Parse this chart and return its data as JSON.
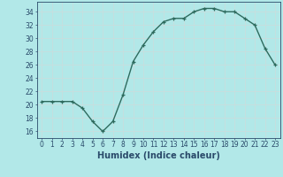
{
  "x": [
    0,
    1,
    2,
    3,
    4,
    5,
    6,
    7,
    8,
    9,
    10,
    11,
    12,
    13,
    14,
    15,
    16,
    17,
    18,
    19,
    20,
    21,
    22,
    23
  ],
  "y": [
    20.5,
    20.5,
    20.5,
    20.5,
    19.5,
    17.5,
    16.0,
    17.5,
    21.5,
    26.5,
    29.0,
    31.0,
    32.5,
    33.0,
    33.0,
    34.0,
    34.5,
    34.5,
    34.0,
    34.0,
    33.0,
    32.0,
    28.5,
    26.0
  ],
  "line_color": "#2e6b5e",
  "marker": "+",
  "bg_color": "#b2e8e8",
  "grid_color": "#c8dede",
  "xlabel": "Humidex (Indice chaleur)",
  "xlim": [
    -0.5,
    23.5
  ],
  "ylim": [
    15.0,
    35.5
  ],
  "yticks": [
    16,
    18,
    20,
    22,
    24,
    26,
    28,
    30,
    32,
    34
  ],
  "xticks": [
    0,
    1,
    2,
    3,
    4,
    5,
    6,
    7,
    8,
    9,
    10,
    11,
    12,
    13,
    14,
    15,
    16,
    17,
    18,
    19,
    20,
    21,
    22,
    23
  ],
  "xtick_labels": [
    "0",
    "1",
    "2",
    "3",
    "4",
    "5",
    "6",
    "7",
    "8",
    "9",
    "10",
    "11",
    "12",
    "13",
    "14",
    "15",
    "16",
    "17",
    "18",
    "19",
    "20",
    "21",
    "22",
    "23"
  ],
  "font_color": "#2a4a6a",
  "tick_fontsize": 5.5,
  "label_fontsize": 7.0,
  "linewidth": 1.0,
  "markersize": 3.5,
  "markeredgewidth": 0.9
}
